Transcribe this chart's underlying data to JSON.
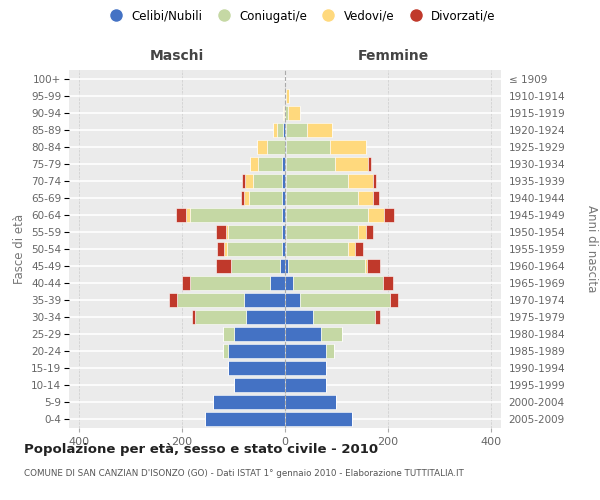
{
  "age_groups": [
    "0-4",
    "5-9",
    "10-14",
    "15-19",
    "20-24",
    "25-29",
    "30-34",
    "35-39",
    "40-44",
    "45-49",
    "50-54",
    "55-59",
    "60-64",
    "65-69",
    "70-74",
    "75-79",
    "80-84",
    "85-89",
    "90-94",
    "95-99",
    "100+"
  ],
  "birth_years": [
    "2005-2009",
    "2000-2004",
    "1995-1999",
    "1990-1994",
    "1985-1989",
    "1980-1984",
    "1975-1979",
    "1970-1974",
    "1965-1969",
    "1960-1964",
    "1955-1959",
    "1950-1954",
    "1945-1949",
    "1940-1944",
    "1935-1939",
    "1930-1934",
    "1925-1929",
    "1920-1924",
    "1915-1919",
    "1910-1914",
    "≤ 1909"
  ],
  "maschi_celibe": [
    155,
    140,
    100,
    110,
    110,
    100,
    75,
    80,
    30,
    10,
    5,
    5,
    5,
    5,
    5,
    5,
    0,
    3,
    0,
    0,
    0
  ],
  "maschi_coniugato": [
    0,
    0,
    0,
    0,
    10,
    20,
    100,
    130,
    155,
    95,
    108,
    105,
    180,
    65,
    58,
    48,
    35,
    12,
    2,
    0,
    0
  ],
  "maschi_vedovo": [
    0,
    0,
    0,
    0,
    0,
    0,
    0,
    0,
    0,
    0,
    5,
    5,
    8,
    10,
    15,
    15,
    20,
    8,
    2,
    0,
    0
  ],
  "maschi_divorziato": [
    0,
    0,
    0,
    0,
    0,
    0,
    5,
    15,
    15,
    30,
    15,
    20,
    18,
    5,
    5,
    0,
    0,
    0,
    0,
    0,
    0
  ],
  "femmine_nubile": [
    130,
    100,
    80,
    80,
    80,
    70,
    55,
    30,
    15,
    5,
    2,
    2,
    2,
    2,
    2,
    2,
    2,
    2,
    0,
    0,
    0
  ],
  "femmine_coniugata": [
    0,
    0,
    0,
    0,
    15,
    40,
    120,
    175,
    175,
    150,
    120,
    140,
    160,
    140,
    120,
    95,
    85,
    40,
    5,
    2,
    0
  ],
  "femmine_vedova": [
    0,
    0,
    0,
    0,
    0,
    0,
    0,
    0,
    0,
    5,
    15,
    15,
    30,
    30,
    50,
    65,
    70,
    50,
    25,
    5,
    0
  ],
  "femmine_divorziata": [
    0,
    0,
    0,
    0,
    0,
    0,
    10,
    15,
    20,
    25,
    15,
    15,
    20,
    10,
    5,
    5,
    0,
    0,
    0,
    0,
    0
  ],
  "color_celibe": "#4472C4",
  "color_coniugato": "#C5D8A4",
  "color_vedovo": "#FFD97D",
  "color_divorziato": "#C0392B",
  "bg_color": "#ebebeb",
  "grid_color": "white",
  "xlim": 420,
  "xticks": [
    -400,
    -200,
    0,
    200,
    400
  ],
  "title": "Popolazione per età, sesso e stato civile - 2010",
  "subtitle": "COMUNE DI SAN CANZIAN D'ISONZO (GO) - Dati ISTAT 1° gennaio 2010 - Elaborazione TUTTITALIA.IT",
  "label_maschi": "Maschi",
  "label_femmine": "Femmine",
  "label_fasce": "Fasce di età",
  "label_anni": "Anni di nascita",
  "legend_labels": [
    "Celibi/Nubili",
    "Coniugati/e",
    "Vedovi/e",
    "Divorzati/e"
  ]
}
